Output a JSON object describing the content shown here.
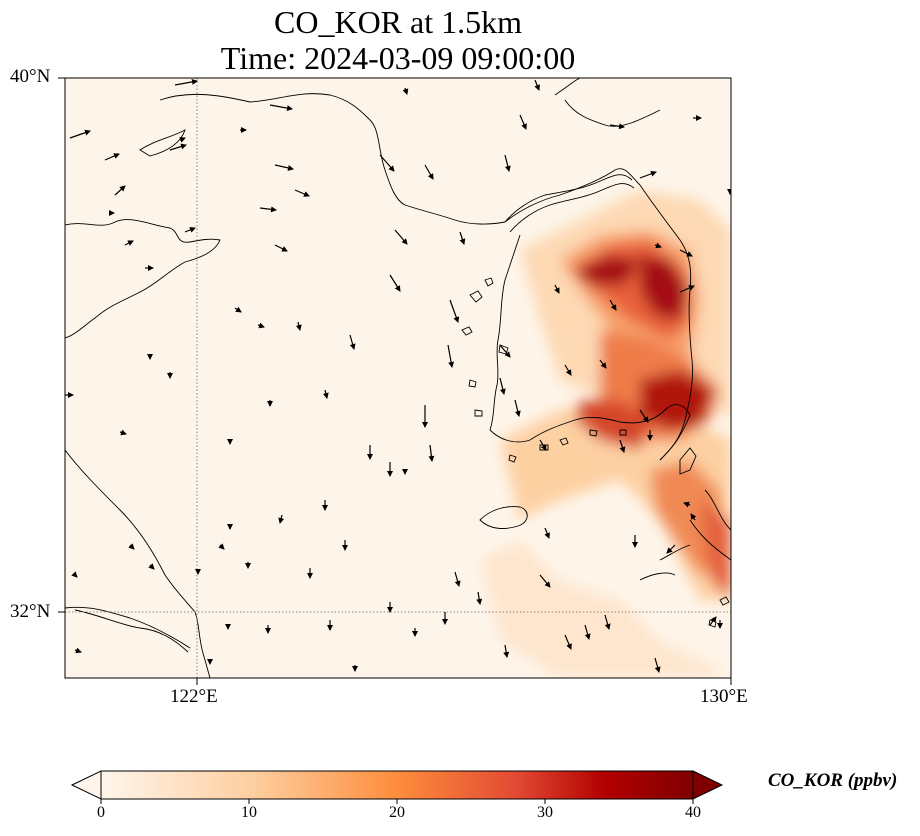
{
  "title_line1": "CO_KOR at 1.5km",
  "title_line2": "Time: 2024-03-09 09:00:00",
  "axes": {
    "lat_labels": [
      "40°N",
      "32°N"
    ],
    "lon_labels": [
      "122°E",
      "130°E"
    ]
  },
  "colorbar": {
    "label": "CO_KOR (ppbv)",
    "ticks": [
      "0",
      "10",
      "20",
      "30",
      "40"
    ],
    "range": [
      0,
      40
    ],
    "colormap": [
      "#fff5eb",
      "#fdd0a2",
      "#fd8d3c",
      "#d94801",
      "#a50f15",
      "#7f0000"
    ]
  },
  "colors": {
    "background": "#fef5ea",
    "coastline": "#000000",
    "gridline": "#888888"
  }
}
